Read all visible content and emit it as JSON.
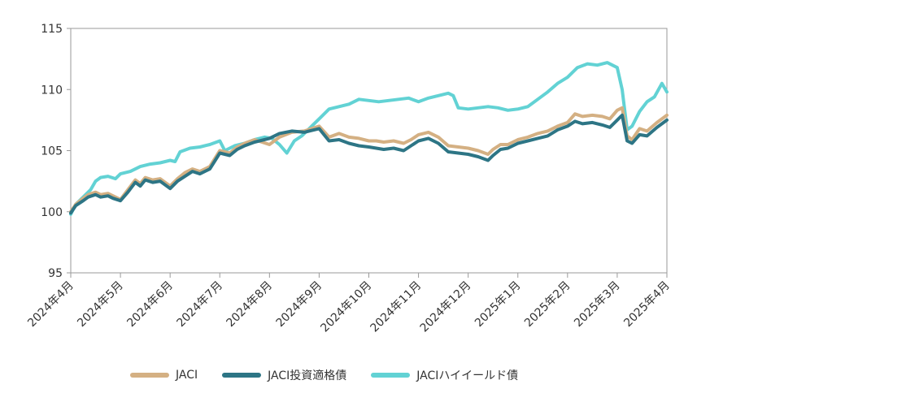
{
  "chart_data": {
    "type": "line",
    "y_ticks": [
      95,
      100,
      105,
      110,
      115
    ],
    "ylim": [
      95,
      115
    ],
    "x_ticks": [
      "2024年4月",
      "2024年5月",
      "2024年6月",
      "2024年7月",
      "2024年8月",
      "2024年9月",
      "2024年10月",
      "2024年11月",
      "2024年12月",
      "2025年1月",
      "2025年2月",
      "2025年3月",
      "2025年4月"
    ],
    "grid": false,
    "legend_position": "bottom",
    "series": [
      {
        "name": "JACI",
        "color": "#d4b083",
        "points": [
          [
            0,
            100.0
          ],
          [
            0.1,
            100.6
          ],
          [
            0.25,
            101.1
          ],
          [
            0.35,
            101.4
          ],
          [
            0.5,
            101.6
          ],
          [
            0.6,
            101.4
          ],
          [
            0.75,
            101.5
          ],
          [
            0.85,
            101.3
          ],
          [
            1.0,
            101.0
          ],
          [
            1.15,
            101.8
          ],
          [
            1.3,
            102.6
          ],
          [
            1.4,
            102.3
          ],
          [
            1.5,
            102.8
          ],
          [
            1.65,
            102.6
          ],
          [
            1.8,
            102.7
          ],
          [
            2.0,
            102.1
          ],
          [
            2.15,
            102.7
          ],
          [
            2.3,
            103.2
          ],
          [
            2.45,
            103.5
          ],
          [
            2.6,
            103.3
          ],
          [
            2.8,
            103.7
          ],
          [
            3.0,
            105.0
          ],
          [
            3.2,
            104.8
          ],
          [
            3.35,
            105.3
          ],
          [
            3.5,
            105.6
          ],
          [
            3.7,
            105.9
          ],
          [
            4.0,
            105.5
          ],
          [
            4.2,
            106.1
          ],
          [
            4.45,
            106.5
          ],
          [
            4.7,
            106.6
          ],
          [
            5.0,
            107.0
          ],
          [
            5.2,
            106.1
          ],
          [
            5.4,
            106.4
          ],
          [
            5.6,
            106.1
          ],
          [
            5.8,
            106.0
          ],
          [
            6.0,
            105.8
          ],
          [
            6.15,
            105.8
          ],
          [
            6.3,
            105.7
          ],
          [
            6.5,
            105.8
          ],
          [
            6.7,
            105.6
          ],
          [
            6.85,
            105.9
          ],
          [
            7.0,
            106.3
          ],
          [
            7.2,
            106.5
          ],
          [
            7.4,
            106.1
          ],
          [
            7.6,
            105.4
          ],
          [
            7.8,
            105.3
          ],
          [
            8.0,
            105.2
          ],
          [
            8.2,
            105.0
          ],
          [
            8.4,
            104.7
          ],
          [
            8.5,
            105.1
          ],
          [
            8.65,
            105.5
          ],
          [
            8.8,
            105.5
          ],
          [
            9.0,
            105.9
          ],
          [
            9.2,
            106.1
          ],
          [
            9.4,
            106.4
          ],
          [
            9.6,
            106.6
          ],
          [
            9.8,
            107.0
          ],
          [
            10.0,
            107.3
          ],
          [
            10.15,
            108.0
          ],
          [
            10.3,
            107.8
          ],
          [
            10.5,
            107.9
          ],
          [
            10.7,
            107.8
          ],
          [
            10.85,
            107.6
          ],
          [
            11.0,
            108.3
          ],
          [
            11.1,
            108.5
          ],
          [
            11.2,
            106.2
          ],
          [
            11.3,
            105.9
          ],
          [
            11.45,
            106.8
          ],
          [
            11.6,
            106.6
          ],
          [
            11.8,
            107.3
          ],
          [
            12.0,
            107.9
          ]
        ]
      },
      {
        "name": "JACI投資適格債",
        "color": "#2d7585",
        "points": [
          [
            0,
            99.9
          ],
          [
            0.1,
            100.5
          ],
          [
            0.25,
            100.9
          ],
          [
            0.35,
            101.2
          ],
          [
            0.5,
            101.4
          ],
          [
            0.6,
            101.2
          ],
          [
            0.75,
            101.3
          ],
          [
            0.85,
            101.1
          ],
          [
            1.0,
            100.9
          ],
          [
            1.15,
            101.6
          ],
          [
            1.3,
            102.4
          ],
          [
            1.4,
            102.1
          ],
          [
            1.5,
            102.6
          ],
          [
            1.65,
            102.4
          ],
          [
            1.8,
            102.5
          ],
          [
            2.0,
            101.9
          ],
          [
            2.15,
            102.5
          ],
          [
            2.3,
            102.9
          ],
          [
            2.45,
            103.3
          ],
          [
            2.6,
            103.1
          ],
          [
            2.8,
            103.5
          ],
          [
            3.0,
            104.8
          ],
          [
            3.2,
            104.6
          ],
          [
            3.35,
            105.1
          ],
          [
            3.5,
            105.4
          ],
          [
            3.7,
            105.7
          ],
          [
            4.0,
            106.0
          ],
          [
            4.2,
            106.4
          ],
          [
            4.45,
            106.6
          ],
          [
            4.7,
            106.5
          ],
          [
            5.0,
            106.8
          ],
          [
            5.2,
            105.8
          ],
          [
            5.4,
            105.9
          ],
          [
            5.6,
            105.6
          ],
          [
            5.8,
            105.4
          ],
          [
            6.0,
            105.3
          ],
          [
            6.15,
            105.2
          ],
          [
            6.3,
            105.1
          ],
          [
            6.5,
            105.2
          ],
          [
            6.7,
            105.0
          ],
          [
            6.85,
            105.4
          ],
          [
            7.0,
            105.8
          ],
          [
            7.2,
            106.0
          ],
          [
            7.4,
            105.6
          ],
          [
            7.6,
            104.9
          ],
          [
            7.8,
            104.8
          ],
          [
            8.0,
            104.7
          ],
          [
            8.2,
            104.5
          ],
          [
            8.4,
            104.2
          ],
          [
            8.5,
            104.6
          ],
          [
            8.65,
            105.1
          ],
          [
            8.8,
            105.2
          ],
          [
            9.0,
            105.6
          ],
          [
            9.2,
            105.8
          ],
          [
            9.4,
            106.0
          ],
          [
            9.6,
            106.2
          ],
          [
            9.8,
            106.7
          ],
          [
            10.0,
            107.0
          ],
          [
            10.15,
            107.4
          ],
          [
            10.3,
            107.2
          ],
          [
            10.5,
            107.3
          ],
          [
            10.7,
            107.1
          ],
          [
            10.85,
            106.9
          ],
          [
            11.0,
            107.5
          ],
          [
            11.1,
            107.9
          ],
          [
            11.2,
            105.8
          ],
          [
            11.3,
            105.6
          ],
          [
            11.45,
            106.3
          ],
          [
            11.6,
            106.2
          ],
          [
            11.8,
            106.9
          ],
          [
            12.0,
            107.5
          ]
        ]
      },
      {
        "name": "JACIハイイールド債",
        "color": "#62d2d4",
        "points": [
          [
            0,
            99.8
          ],
          [
            0.1,
            100.6
          ],
          [
            0.25,
            101.2
          ],
          [
            0.4,
            101.8
          ],
          [
            0.5,
            102.5
          ],
          [
            0.6,
            102.8
          ],
          [
            0.75,
            102.9
          ],
          [
            0.9,
            102.7
          ],
          [
            1.0,
            103.1
          ],
          [
            1.2,
            103.3
          ],
          [
            1.4,
            103.7
          ],
          [
            1.6,
            103.9
          ],
          [
            1.8,
            104.0
          ],
          [
            2.0,
            104.2
          ],
          [
            2.1,
            104.1
          ],
          [
            2.2,
            104.9
          ],
          [
            2.4,
            105.2
          ],
          [
            2.6,
            105.3
          ],
          [
            2.8,
            105.5
          ],
          [
            3.0,
            105.8
          ],
          [
            3.1,
            105.0
          ],
          [
            3.3,
            105.4
          ],
          [
            3.5,
            105.6
          ],
          [
            3.7,
            105.9
          ],
          [
            3.9,
            106.1
          ],
          [
            4.05,
            106.0
          ],
          [
            4.2,
            105.5
          ],
          [
            4.35,
            104.8
          ],
          [
            4.5,
            105.8
          ],
          [
            4.65,
            106.2
          ],
          [
            4.8,
            106.8
          ],
          [
            5.0,
            107.6
          ],
          [
            5.2,
            108.4
          ],
          [
            5.4,
            108.6
          ],
          [
            5.6,
            108.8
          ],
          [
            5.8,
            109.2
          ],
          [
            6.0,
            109.1
          ],
          [
            6.2,
            109.0
          ],
          [
            6.4,
            109.1
          ],
          [
            6.6,
            109.2
          ],
          [
            6.8,
            109.3
          ],
          [
            7.0,
            109.0
          ],
          [
            7.2,
            109.3
          ],
          [
            7.4,
            109.5
          ],
          [
            7.6,
            109.7
          ],
          [
            7.7,
            109.5
          ],
          [
            7.8,
            108.5
          ],
          [
            8.0,
            108.4
          ],
          [
            8.2,
            108.5
          ],
          [
            8.4,
            108.6
          ],
          [
            8.6,
            108.5
          ],
          [
            8.8,
            108.3
          ],
          [
            9.0,
            108.4
          ],
          [
            9.2,
            108.6
          ],
          [
            9.4,
            109.2
          ],
          [
            9.6,
            109.8
          ],
          [
            9.8,
            110.5
          ],
          [
            10.0,
            111.0
          ],
          [
            10.2,
            111.8
          ],
          [
            10.4,
            112.1
          ],
          [
            10.6,
            112.0
          ],
          [
            10.8,
            112.2
          ],
          [
            11.0,
            111.8
          ],
          [
            11.1,
            110.0
          ],
          [
            11.2,
            106.7
          ],
          [
            11.3,
            107.0
          ],
          [
            11.45,
            108.2
          ],
          [
            11.6,
            109.0
          ],
          [
            11.75,
            109.4
          ],
          [
            11.9,
            110.5
          ],
          [
            12.0,
            109.8
          ]
        ]
      }
    ]
  }
}
